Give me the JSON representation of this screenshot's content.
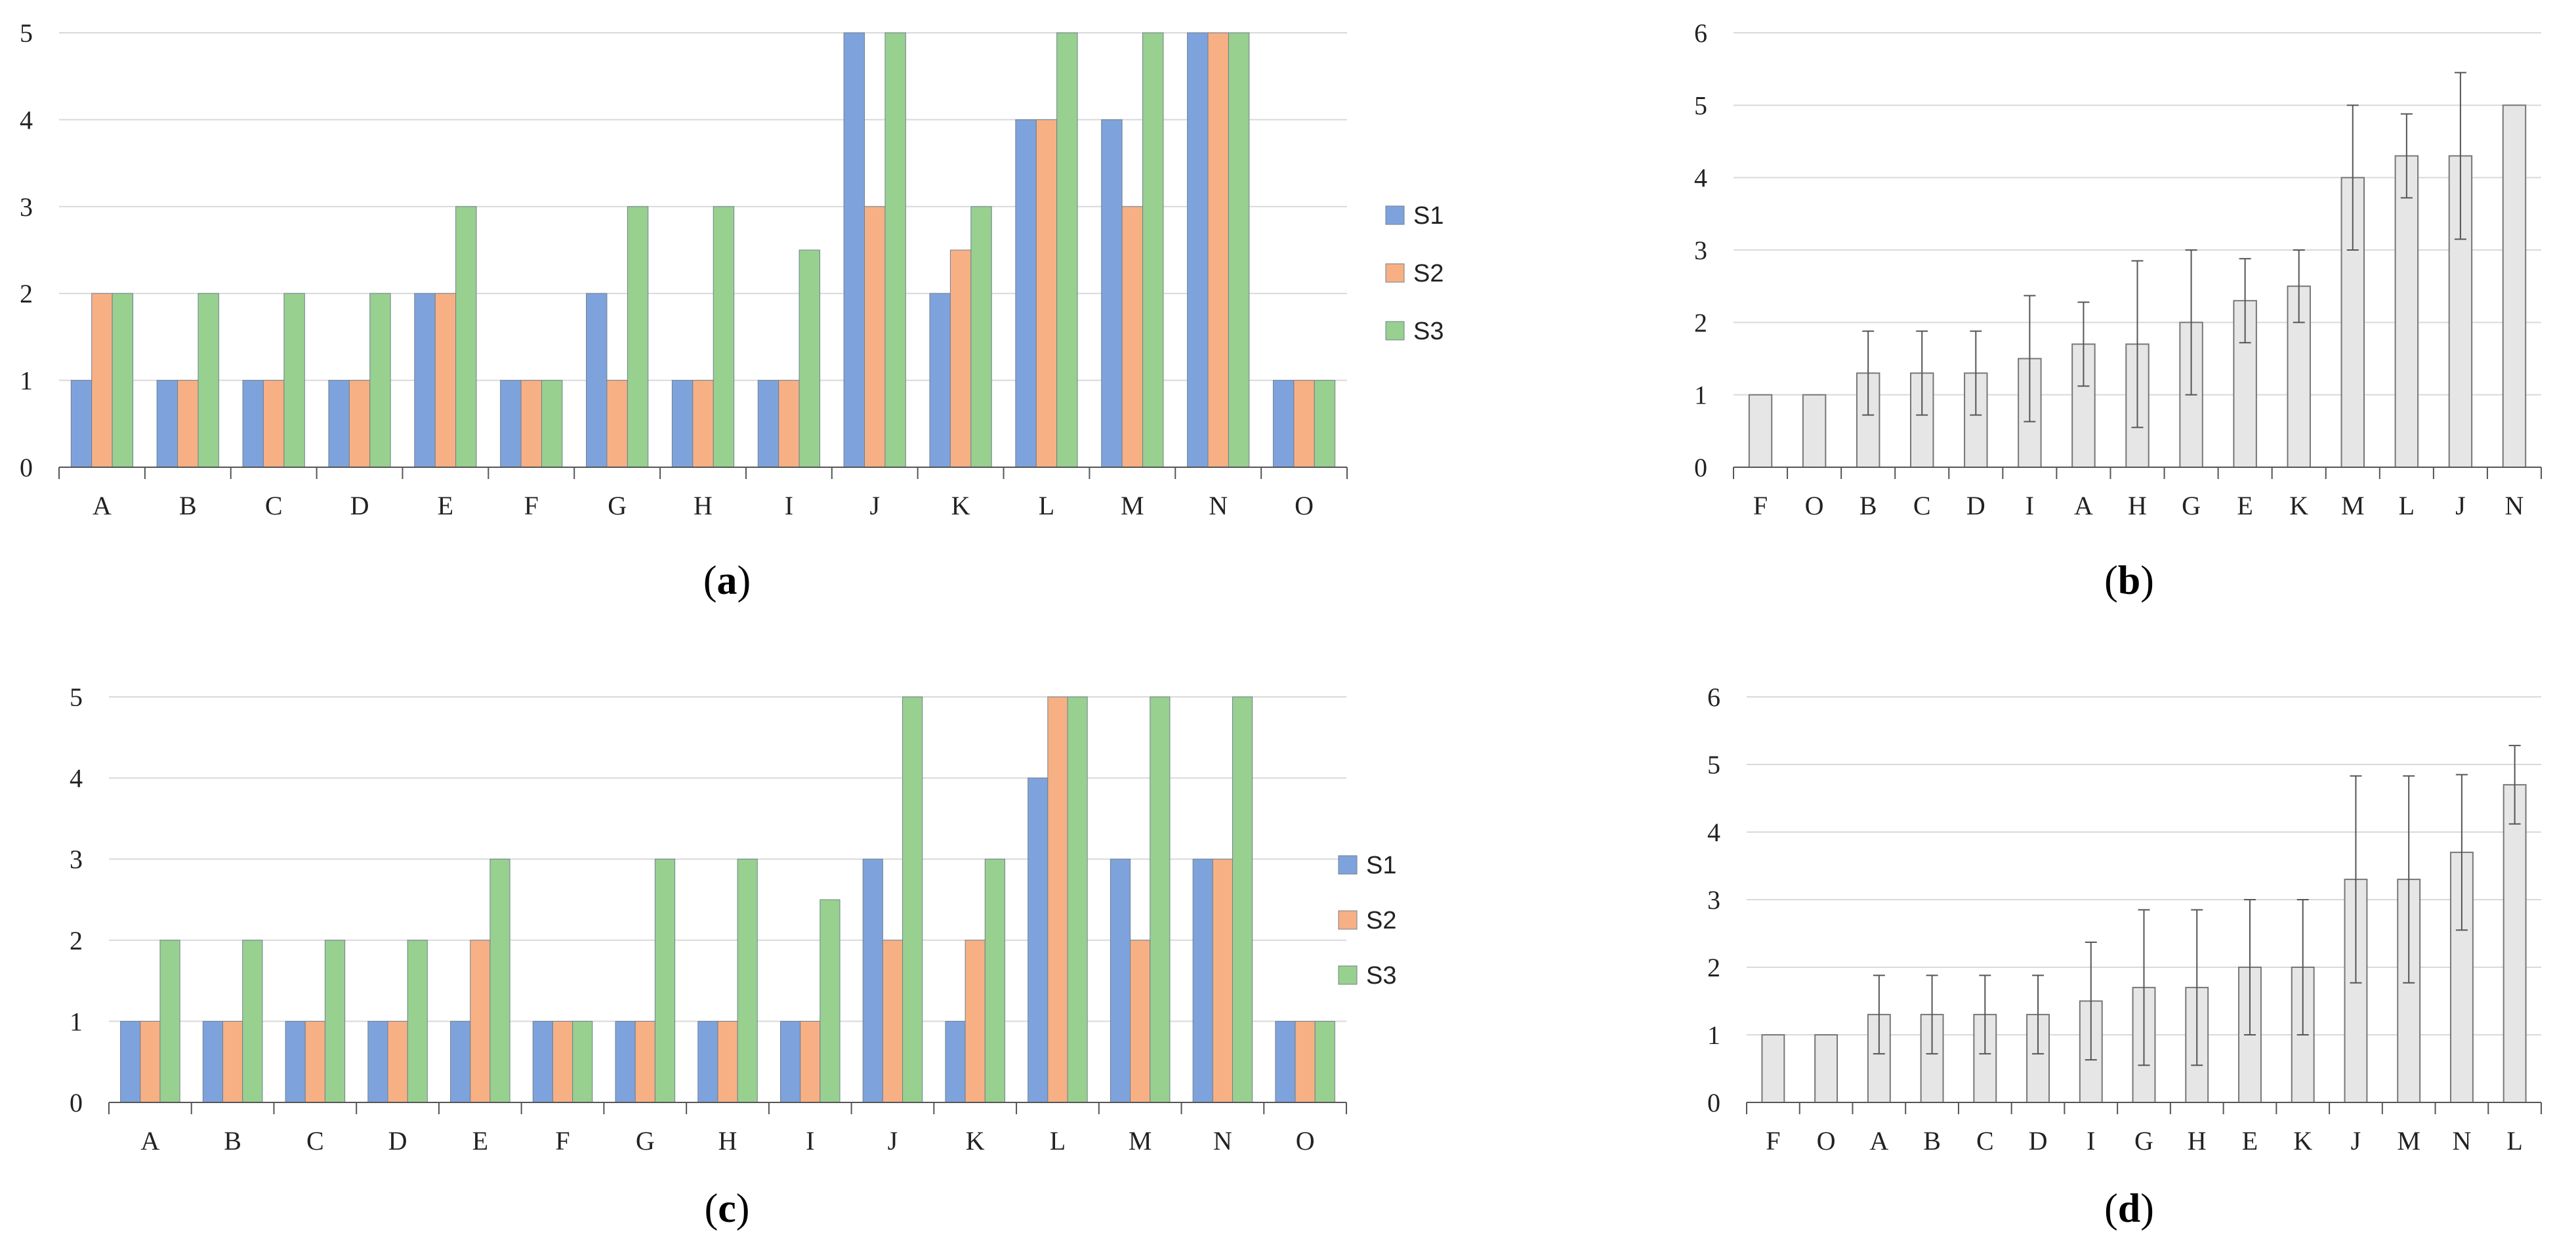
{
  "colors": {
    "S1": "#7ea3dc",
    "S2": "#f7b084",
    "S3": "#98d08f",
    "gray_bar": "#e6e6e6",
    "grid": "#d9d9d9",
    "axis": "#555555",
    "error": "#555555"
  },
  "chart_data": [
    {
      "id": "a",
      "type": "bar",
      "panel_label": "a",
      "categories": [
        "A",
        "B",
        "C",
        "D",
        "E",
        "F",
        "G",
        "H",
        "I",
        "J",
        "K",
        "L",
        "M",
        "N",
        "O"
      ],
      "series": [
        {
          "name": "S1",
          "values": [
            1,
            1,
            1,
            1,
            2,
            1,
            2,
            1,
            1,
            5,
            2,
            4,
            4,
            5,
            1
          ]
        },
        {
          "name": "S2",
          "values": [
            2,
            1,
            1,
            1,
            2,
            1,
            1,
            1,
            1,
            3,
            2.5,
            4,
            3,
            5,
            1
          ]
        },
        {
          "name": "S3",
          "values": [
            2,
            2,
            2,
            2,
            3,
            1,
            3,
            3,
            2.5,
            5,
            3,
            5,
            5,
            5,
            1
          ]
        }
      ],
      "ylim": [
        0,
        5
      ],
      "yticks": [
        "0",
        "1",
        "2",
        "3",
        "4",
        "5"
      ],
      "legend": [
        "S1",
        "S2",
        "S3"
      ],
      "legend_position": "right",
      "grid": true
    },
    {
      "id": "b",
      "type": "bar",
      "panel_label": "b",
      "categories": [
        "F",
        "O",
        "B",
        "C",
        "D",
        "I",
        "A",
        "H",
        "G",
        "E",
        "K",
        "M",
        "L",
        "J",
        "N"
      ],
      "values": [
        1,
        1,
        1.3,
        1.3,
        1.3,
        1.5,
        1.7,
        1.7,
        2,
        2.3,
        2.5,
        4,
        4.3,
        4.3,
        5
      ],
      "errors": [
        0,
        0,
        0.58,
        0.58,
        0.58,
        0.87,
        0.58,
        1.15,
        1,
        0.58,
        0.5,
        1,
        0.58,
        1.15,
        0
      ],
      "ylim": [
        0,
        6
      ],
      "yticks": [
        "0",
        "1",
        "2",
        "3",
        "4",
        "5",
        "6"
      ],
      "grid": true
    },
    {
      "id": "c",
      "type": "bar",
      "panel_label": "c",
      "categories": [
        "A",
        "B",
        "C",
        "D",
        "E",
        "F",
        "G",
        "H",
        "I",
        "J",
        "K",
        "L",
        "M",
        "N",
        "O"
      ],
      "series": [
        {
          "name": "S1",
          "values": [
            1,
            1,
            1,
            1,
            1,
            1,
            1,
            1,
            1,
            3,
            1,
            4,
            3,
            3,
            1
          ]
        },
        {
          "name": "S2",
          "values": [
            1,
            1,
            1,
            1,
            2,
            1,
            1,
            1,
            1,
            2,
            2,
            5,
            2,
            3,
            1
          ]
        },
        {
          "name": "S3",
          "values": [
            2,
            2,
            2,
            2,
            3,
            1,
            3,
            3,
            2.5,
            5,
            3,
            5,
            5,
            5,
            1
          ]
        }
      ],
      "ylim": [
        0,
        5
      ],
      "yticks": [
        "0",
        "1",
        "2",
        "3",
        "4",
        "5"
      ],
      "legend": [
        "S1",
        "S2",
        "S3"
      ],
      "legend_position": "right",
      "grid": true
    },
    {
      "id": "d",
      "type": "bar",
      "panel_label": "d",
      "categories": [
        "F",
        "O",
        "A",
        "B",
        "C",
        "D",
        "I",
        "G",
        "H",
        "E",
        "K",
        "J",
        "M",
        "N",
        "L"
      ],
      "values": [
        1,
        1,
        1.3,
        1.3,
        1.3,
        1.3,
        1.5,
        1.7,
        1.7,
        2,
        2,
        3.3,
        3.3,
        3.7,
        4.7
      ],
      "errors": [
        0,
        0,
        0.58,
        0.58,
        0.58,
        0.58,
        0.87,
        1.15,
        1.15,
        1,
        1,
        1.53,
        1.53,
        1.15,
        0.58
      ],
      "ylim": [
        0,
        6
      ],
      "yticks": [
        "0",
        "1",
        "2",
        "3",
        "4",
        "5",
        "6"
      ],
      "grid": true
    }
  ]
}
